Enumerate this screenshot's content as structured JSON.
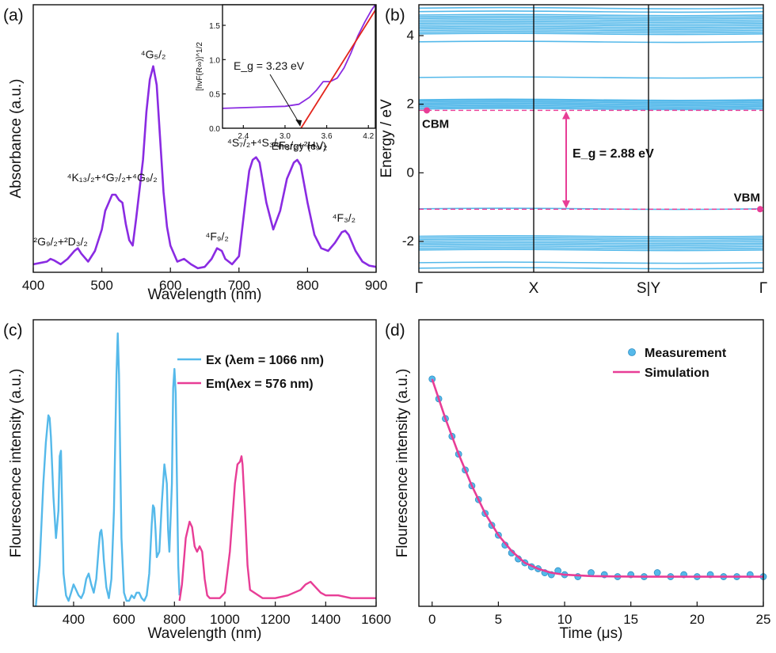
{
  "figure": {
    "panel_labels": [
      "(a)",
      "(b)",
      "(c)",
      "(d)"
    ],
    "colors": {
      "purple": "#8a2be2",
      "cyan": "#55b9ea",
      "pink": "#e83d96",
      "red": "#e3241b"
    }
  },
  "chart_data": [
    {
      "panel": "(a)",
      "type": "line",
      "xlabel": "Wavelength (nm)",
      "ylabel": "Absorbance (a.u.)",
      "xlim": [
        400,
        900
      ],
      "ylim": [
        0,
        1
      ],
      "xticks": [
        400,
        500,
        600,
        700,
        800,
        900
      ],
      "color": "#8a2be2",
      "x": [
        400,
        410,
        420,
        425,
        430,
        440,
        450,
        460,
        465,
        470,
        480,
        490,
        500,
        505,
        510,
        515,
        520,
        525,
        530,
        535,
        540,
        545,
        550,
        560,
        565,
        570,
        575,
        580,
        585,
        590,
        595,
        600,
        610,
        620,
        630,
        640,
        650,
        660,
        668,
        675,
        680,
        690,
        700,
        710,
        715,
        720,
        725,
        730,
        740,
        750,
        760,
        770,
        780,
        785,
        790,
        800,
        810,
        820,
        830,
        840,
        850,
        855,
        860,
        870,
        880,
        890,
        900
      ],
      "y": [
        0.03,
        0.035,
        0.04,
        0.05,
        0.045,
        0.03,
        0.05,
        0.08,
        0.09,
        0.07,
        0.04,
        0.08,
        0.16,
        0.23,
        0.26,
        0.29,
        0.29,
        0.27,
        0.26,
        0.18,
        0.12,
        0.1,
        0.2,
        0.42,
        0.6,
        0.72,
        0.77,
        0.7,
        0.5,
        0.3,
        0.17,
        0.1,
        0.04,
        0.05,
        0.03,
        0.015,
        0.02,
        0.05,
        0.09,
        0.08,
        0.05,
        0.03,
        0.06,
        0.28,
        0.38,
        0.42,
        0.43,
        0.41,
        0.26,
        0.16,
        0.23,
        0.35,
        0.41,
        0.42,
        0.4,
        0.26,
        0.14,
        0.09,
        0.08,
        0.11,
        0.15,
        0.155,
        0.14,
        0.08,
        0.04,
        0.025,
        0.02
      ],
      "annotations": [
        {
          "text": "⁴G₅/₂",
          "x": 575,
          "y": 0.8
        },
        {
          "text": "⁴K₁₃/₂+⁴G₇/₂+⁴G₉/₂",
          "x": 515,
          "y": 0.34
        },
        {
          "text": "²G₉/₂+²D₃/₂",
          "x": 440,
          "y": 0.1
        },
        {
          "text": "⁴S₇/₂+⁴S₃/₂",
          "x": 722,
          "y": 0.47
        },
        {
          "text": "⁴F₅/₂+²H₉/₂",
          "x": 790,
          "y": 0.46
        },
        {
          "text": "⁴F₉/₂",
          "x": 668,
          "y": 0.12
        },
        {
          "text": "⁴F₃/₂",
          "x": 853,
          "y": 0.19
        }
      ],
      "inset": {
        "type": "line",
        "xlabel": "Energy (eV)",
        "ylabel": "[hνF(R∞)]^1/2",
        "xlim": [
          2.1,
          4.3
        ],
        "ylim": [
          0,
          1.8
        ],
        "xticks": [
          2.4,
          3.0,
          3.6,
          4.2
        ],
        "yticks": [
          0.0,
          0.5,
          1.0,
          1.5
        ],
        "series": [
          {
            "color": "#8a2be2",
            "x": [
              2.1,
              2.4,
              2.7,
              3.0,
              3.2,
              3.35,
              3.45,
              3.55,
              3.65,
              3.75,
              3.85,
              3.95,
              4.05,
              4.15,
              4.25,
              4.3
            ],
            "y": [
              0.29,
              0.3,
              0.31,
              0.32,
              0.35,
              0.45,
              0.55,
              0.68,
              0.68,
              0.73,
              0.88,
              1.1,
              1.35,
              1.55,
              1.73,
              1.8
            ]
          },
          {
            "color": "#e3241b",
            "x": [
              3.23,
              4.3
            ],
            "y": [
              0.0,
              1.72
            ]
          }
        ],
        "annotation": "E_g = 3.23 eV",
        "eg_value": 3.23
      }
    },
    {
      "panel": "(b)",
      "type": "band-structure",
      "ylabel": "Energy / eV",
      "ylim": [
        -2.9,
        4.9
      ],
      "yticks": [
        -2,
        0,
        2,
        4
      ],
      "kpoints": [
        "Γ",
        "X",
        "S|Y",
        "Γ"
      ],
      "conduction_bands_eV": [
        4.1,
        4.15,
        4.2,
        4.25,
        4.3,
        4.35,
        4.4,
        4.45,
        4.5,
        4.55,
        4.6,
        4.7,
        4.8,
        3.82,
        4.05,
        2.78,
        2.13,
        2.1,
        2.06,
        2.02,
        1.98,
        1.94,
        1.9,
        1.86
      ],
      "valence_bands_eV": [
        -1.05,
        -1.85,
        -1.9,
        -1.95,
        -2.0,
        -2.05,
        -2.1,
        -2.15,
        -2.2,
        -2.25,
        -2.62,
        -2.78
      ],
      "cbm_eV": 1.82,
      "vbm_eV": -1.06,
      "band_gap_label": "E_g = 2.88 eV",
      "cbm_label": "CBM",
      "vbm_label": "VBM",
      "line_color": "#55b9ea",
      "marker_color": "#e83d96"
    },
    {
      "panel": "(c)",
      "type": "line",
      "xlabel": "Wavelength (nm)",
      "ylabel": "Flourescence intensity (a.u.)",
      "xlim": [
        240,
        1600
      ],
      "ylim": [
        0,
        1.05
      ],
      "xticks": [
        400,
        600,
        800,
        1000,
        1200,
        1400,
        1600
      ],
      "series": [
        {
          "name": "Ex (λem = 1066 nm)",
          "color": "#55b9ea",
          "x": [
            250,
            265,
            280,
            290,
            300,
            305,
            310,
            320,
            330,
            340,
            345,
            350,
            355,
            360,
            370,
            380,
            390,
            400,
            410,
            420,
            430,
            440,
            450,
            460,
            470,
            480,
            490,
            500,
            505,
            510,
            515,
            520,
            530,
            540,
            550,
            560,
            565,
            570,
            575,
            580,
            585,
            590,
            600,
            610,
            620,
            630,
            640,
            650,
            660,
            670,
            680,
            690,
            700,
            710,
            715,
            720,
            725,
            730,
            740,
            750,
            760,
            770,
            775,
            780,
            790,
            795,
            800,
            805,
            810,
            815,
            820
          ],
          "y": [
            0.0,
            0.15,
            0.45,
            0.6,
            0.7,
            0.69,
            0.62,
            0.4,
            0.25,
            0.35,
            0.55,
            0.57,
            0.35,
            0.12,
            0.04,
            0.02,
            0.05,
            0.08,
            0.06,
            0.04,
            0.03,
            0.05,
            0.1,
            0.12,
            0.08,
            0.05,
            0.1,
            0.22,
            0.27,
            0.28,
            0.24,
            0.17,
            0.07,
            0.03,
            0.1,
            0.35,
            0.6,
            0.85,
            1.0,
            0.85,
            0.55,
            0.25,
            0.05,
            0.02,
            0.02,
            0.04,
            0.03,
            0.05,
            0.05,
            0.03,
            0.02,
            0.04,
            0.12,
            0.3,
            0.37,
            0.36,
            0.28,
            0.18,
            0.2,
            0.38,
            0.52,
            0.45,
            0.28,
            0.2,
            0.45,
            0.8,
            0.87,
            0.78,
            0.45,
            0.15,
            0.04
          ]
        },
        {
          "name": "Em(λex = 576 nm)",
          "color": "#e83d96",
          "x": [
            820,
            830,
            845,
            860,
            870,
            880,
            890,
            900,
            910,
            920,
            930,
            940,
            960,
            980,
            1000,
            1020,
            1040,
            1050,
            1060,
            1066,
            1070,
            1080,
            1090,
            1100,
            1150,
            1200,
            1250,
            1300,
            1320,
            1340,
            1360,
            1380,
            1400,
            1450,
            1500,
            1550,
            1600
          ],
          "y": [
            0.02,
            0.08,
            0.25,
            0.31,
            0.29,
            0.22,
            0.2,
            0.22,
            0.2,
            0.1,
            0.04,
            0.03,
            0.03,
            0.03,
            0.05,
            0.2,
            0.45,
            0.52,
            0.53,
            0.55,
            0.52,
            0.35,
            0.15,
            0.06,
            0.03,
            0.03,
            0.04,
            0.06,
            0.08,
            0.09,
            0.07,
            0.05,
            0.04,
            0.04,
            0.03,
            0.03,
            0.03
          ]
        }
      ]
    },
    {
      "panel": "(d)",
      "type": "scatter",
      "xlabel": "Time (μs)",
      "ylabel": "Flourescence intensity (a.u.)",
      "xlim": [
        -1,
        25
      ],
      "ylim": [
        -0.15,
        1.3
      ],
      "xticks": [
        0,
        5,
        10,
        15,
        20,
        25
      ],
      "series": [
        {
          "name": "Measurement",
          "color": "#55b9ea",
          "x": [
            0,
            0.5,
            1,
            1.5,
            2,
            2.5,
            3,
            3.5,
            4,
            4.5,
            5,
            5.5,
            6,
            6.5,
            7,
            7.5,
            8,
            8.5,
            9,
            9.5,
            10,
            11,
            12,
            13,
            14,
            15,
            16,
            17,
            18,
            19,
            20,
            21,
            22,
            23,
            24,
            25
          ],
          "y": [
            1.0,
            0.9,
            0.8,
            0.71,
            0.62,
            0.54,
            0.46,
            0.39,
            0.32,
            0.26,
            0.21,
            0.16,
            0.12,
            0.09,
            0.07,
            0.05,
            0.04,
            0.02,
            0.01,
            0.03,
            0.01,
            0.0,
            0.02,
            0.01,
            0.0,
            0.01,
            0.0,
            0.02,
            0.0,
            0.01,
            0.0,
            0.01,
            0.0,
            0.0,
            0.01,
            0.0
          ]
        },
        {
          "name": "Simulation",
          "color": "#e83d96",
          "x": [
            0,
            1,
            2,
            3,
            4,
            5,
            6,
            7,
            8,
            9,
            10,
            12,
            14,
            16,
            18,
            20,
            22,
            25
          ],
          "y": [
            1.0,
            0.8,
            0.62,
            0.46,
            0.32,
            0.21,
            0.13,
            0.07,
            0.04,
            0.02,
            0.01,
            0.003,
            0.001,
            0.0,
            0.0,
            0.0,
            0.0,
            0.0
          ]
        }
      ]
    }
  ]
}
